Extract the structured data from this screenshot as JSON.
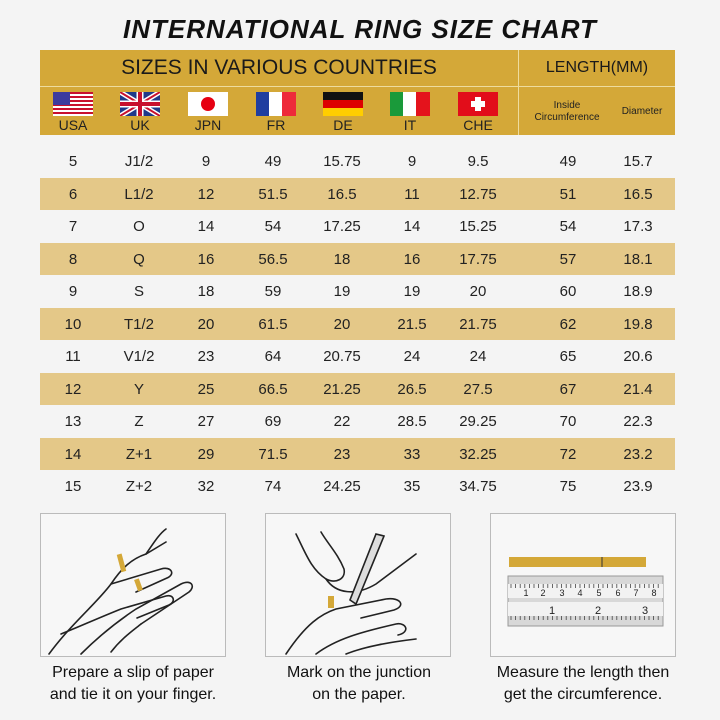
{
  "title": "INTERNATIONAL RING SIZE CHART",
  "header": {
    "sizes_label": "SIZES IN VARIOUS COUNTRIES",
    "length_label": "LENGTH(MM)",
    "countries": [
      {
        "code": "USA",
        "flag": "us-flag-icon"
      },
      {
        "code": "UK",
        "flag": "uk-flag-icon"
      },
      {
        "code": "JPN",
        "flag": "japan-flag-icon"
      },
      {
        "code": "FR",
        "flag": "france-flag-icon"
      },
      {
        "code": "DE",
        "flag": "germany-flag-icon"
      },
      {
        "code": "IT",
        "flag": "italy-flag-icon"
      },
      {
        "code": "CHE",
        "flag": "switzerland-flag-icon"
      }
    ],
    "inside": "Inside",
    "circumference": "Circumference",
    "diameter": "Diameter"
  },
  "colors": {
    "header": "#d4a838",
    "alt_row": "#e4c888",
    "background": "#f4f4f4"
  },
  "rows": [
    [
      "5",
      "J1/2",
      "9",
      "49",
      "15.75",
      "9",
      "9.5",
      "49",
      "15.7"
    ],
    [
      "6",
      "L1/2",
      "12",
      "51.5",
      "16.5",
      "11",
      "12.75",
      "51",
      "16.5"
    ],
    [
      "7",
      "O",
      "14",
      "54",
      "17.25",
      "14",
      "15.25",
      "54",
      "17.3"
    ],
    [
      "8",
      "Q",
      "16",
      "56.5",
      "18",
      "16",
      "17.75",
      "57",
      "18.1"
    ],
    [
      "9",
      "S",
      "18",
      "59",
      "19",
      "19",
      "20",
      "60",
      "18.9"
    ],
    [
      "10",
      "T1/2",
      "20",
      "61.5",
      "20",
      "21.5",
      "21.75",
      "62",
      "19.8"
    ],
    [
      "11",
      "V1/2",
      "23",
      "64",
      "20.75",
      "24",
      "24",
      "65",
      "20.6"
    ],
    [
      "12",
      "Y",
      "25",
      "66.5",
      "21.25",
      "26.5",
      "27.5",
      "67",
      "21.4"
    ],
    [
      "13",
      "Z",
      "27",
      "69",
      "22",
      "28.5",
      "29.25",
      "70",
      "22.3"
    ],
    [
      "14",
      "Z+1",
      "29",
      "71.5",
      "23",
      "33",
      "32.25",
      "72",
      "23.2"
    ],
    [
      "15",
      "Z+2",
      "32",
      "74",
      "24.25",
      "35",
      "34.75",
      "75",
      "23.9"
    ]
  ],
  "steps": [
    {
      "line1": "Prepare a slip of paper",
      "line2": "and tie it on your finger."
    },
    {
      "line1": "Mark on the junction",
      "line2": "on the paper."
    },
    {
      "line1": "Measure the length then",
      "line2": "get the circumference."
    }
  ],
  "ruler": {
    "inch_marks": [
      "1",
      "2",
      "3",
      "4",
      "5",
      "6",
      "7",
      "8"
    ],
    "cm_marks": [
      "1",
      "2",
      "3"
    ]
  }
}
